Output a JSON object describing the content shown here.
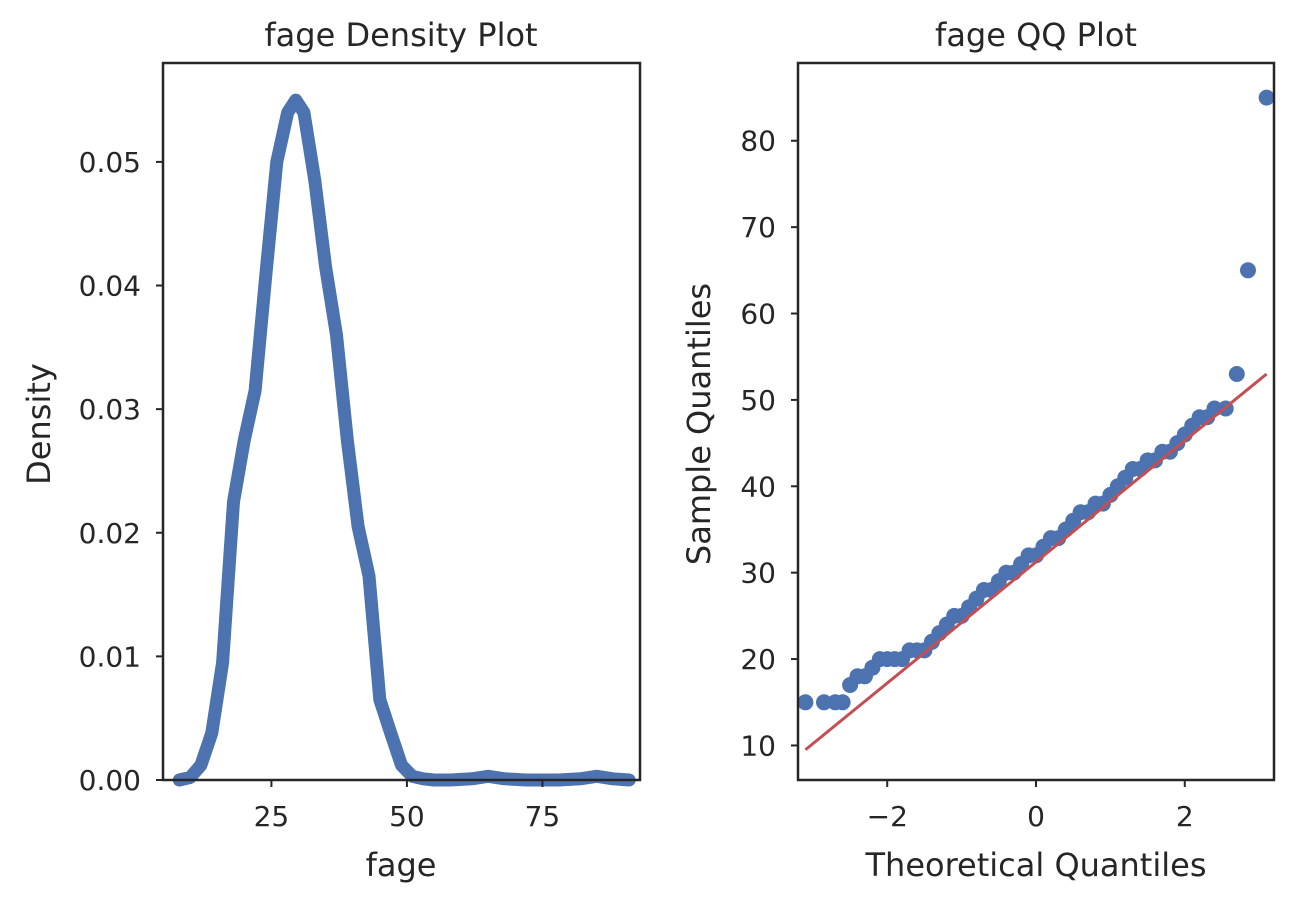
{
  "chart_data": [
    {
      "type": "line",
      "title": "fage Density Plot",
      "xlabel": "fage",
      "ylabel": "Density",
      "xlim": [
        5,
        93
      ],
      "ylim": [
        0,
        0.058
      ],
      "xticks": [
        25,
        50,
        75
      ],
      "xtick_labels": [
        "25",
        "50",
        "75"
      ],
      "yticks": [
        0,
        0.01,
        0.02,
        0.03,
        0.04,
        0.05
      ],
      "ytick_labels": [
        "0.00",
        "0.01",
        "0.02",
        "0.03",
        "0.04",
        "0.05"
      ],
      "grid": false,
      "color": "#4c72b0",
      "series": [
        {
          "x": [
            8,
            10,
            12,
            14,
            16,
            18,
            20,
            22,
            24,
            26,
            28,
            29.5,
            31,
            33,
            35,
            37,
            39,
            41,
            43,
            45,
            47,
            49,
            51,
            53,
            55,
            58,
            62,
            65,
            68,
            72,
            78,
            82,
            85,
            88,
            91
          ],
          "y": [
            0.0,
            0.0002,
            0.0012,
            0.0038,
            0.0095,
            0.0225,
            0.0275,
            0.0315,
            0.041,
            0.05,
            0.054,
            0.055,
            0.054,
            0.0485,
            0.0415,
            0.036,
            0.0275,
            0.0205,
            0.0165,
            0.0065,
            0.0038,
            0.0012,
            0.0003,
            0.0001,
            0.0,
            0.0,
            0.0001,
            0.0003,
            0.0001,
            0.0,
            0.0,
            0.0001,
            0.0003,
            0.0001,
            0.0
          ]
        }
      ]
    },
    {
      "type": "scatter",
      "title": "fage QQ Plot",
      "xlabel": "Theoretical Quantiles",
      "ylabel": "Sample Quantiles",
      "xlim": [
        -3.2,
        3.2
      ],
      "ylim": [
        6,
        89
      ],
      "xticks": [
        -2,
        0,
        2
      ],
      "xtick_labels": [
        "−2",
        "0",
        "2"
      ],
      "yticks": [
        10,
        20,
        30,
        40,
        50,
        60,
        70,
        80
      ],
      "ytick_labels": [
        "10",
        "20",
        "30",
        "40",
        "50",
        "60",
        "70",
        "80"
      ],
      "grid": false,
      "point_color": "#4c72b0",
      "line_color": "#c44e52",
      "reference_line": {
        "x": [
          -3.1,
          3.1
        ],
        "y": [
          9.5,
          53
        ]
      },
      "series": [
        {
          "x": [
            -3.1,
            -2.85,
            -2.7,
            -2.6,
            -2.5,
            -2.4,
            -2.3,
            -2.2,
            -2.1,
            -2.0,
            -1.9,
            -1.8,
            -1.7,
            -1.6,
            -1.5,
            -1.4,
            -1.3,
            -1.2,
            -1.1,
            -1.0,
            -0.9,
            -0.8,
            -0.7,
            -0.6,
            -0.5,
            -0.4,
            -0.3,
            -0.2,
            -0.1,
            0.0,
            0.1,
            0.2,
            0.3,
            0.4,
            0.5,
            0.6,
            0.7,
            0.8,
            0.9,
            1.0,
            1.1,
            1.2,
            1.3,
            1.4,
            1.5,
            1.6,
            1.7,
            1.8,
            1.9,
            2.0,
            2.1,
            2.2,
            2.3,
            2.4,
            2.55,
            2.7,
            2.85,
            3.1
          ],
          "y": [
            15,
            15,
            15,
            15,
            17,
            18,
            18,
            19,
            20,
            20,
            20,
            20,
            21,
            21,
            21,
            22,
            23,
            24,
            25,
            25,
            26,
            27,
            28,
            28,
            29,
            30,
            30,
            31,
            32,
            32,
            33,
            34,
            34,
            35,
            36,
            37,
            37,
            38,
            38,
            39,
            40,
            41,
            42,
            42,
            43,
            43,
            44,
            44,
            45,
            46,
            47,
            48,
            48,
            49,
            49,
            53,
            65,
            85
          ]
        }
      ]
    }
  ]
}
